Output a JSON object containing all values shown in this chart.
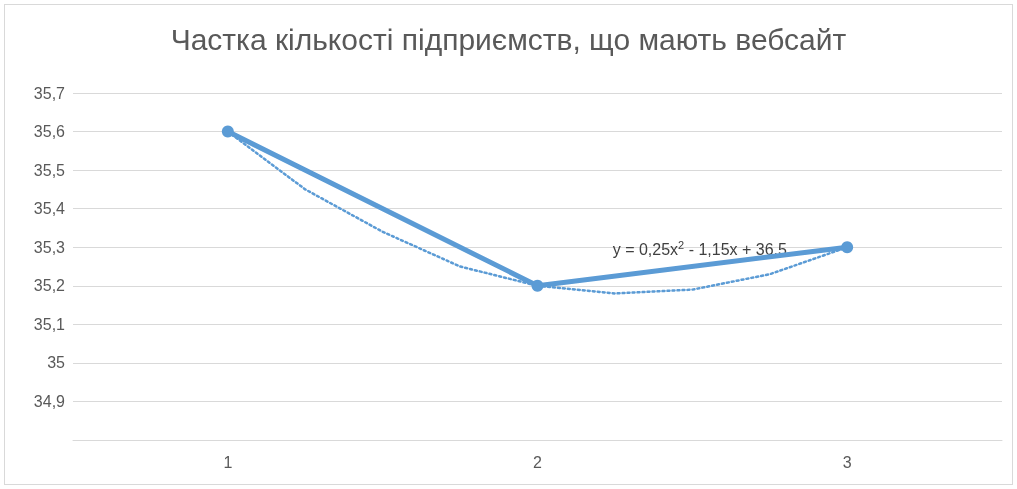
{
  "chart_data": {
    "type": "line",
    "title": "Частка кількості підприємств, що мають вебсайт",
    "series": [
      {
        "color": "#5b9bd5",
        "x": [
          1,
          2,
          3
        ],
        "values": [
          35.6,
          35.2,
          35.3
        ],
        "marker": "circle",
        "line_style": "solid"
      },
      {
        "color": "#5b9bd5",
        "x": [
          1,
          1.25,
          1.5,
          1.75,
          2,
          2.25,
          2.5,
          2.75,
          3
        ],
        "values": [
          35.6,
          35.45,
          35.34,
          35.25,
          35.2,
          35.18,
          35.19,
          35.23,
          35.3
        ],
        "marker": "none",
        "line_style": "dotted"
      }
    ],
    "xlim": [
      0.5,
      3.5
    ],
    "xticks": [
      1,
      2,
      3
    ],
    "ylim": [
      34.8,
      35.7
    ],
    "yticks": [
      {
        "value": 34.9,
        "label": "34,9"
      },
      35,
      {
        "value": 35.1,
        "label": "35,1"
      },
      {
        "value": 35.2,
        "label": "35,2"
      },
      {
        "value": 35.3,
        "label": "35,3"
      },
      {
        "value": 35.4,
        "label": "35,4"
      },
      {
        "value": 35.5,
        "label": "35,5"
      },
      {
        "value": 35.6,
        "label": "35,6"
      },
      {
        "value": 35.7,
        "label": "35,7"
      }
    ],
    "grid": "y",
    "annotations": [
      "y = 0,25x$^{2}$ - 1,15x + 36,5"
    ]
  }
}
